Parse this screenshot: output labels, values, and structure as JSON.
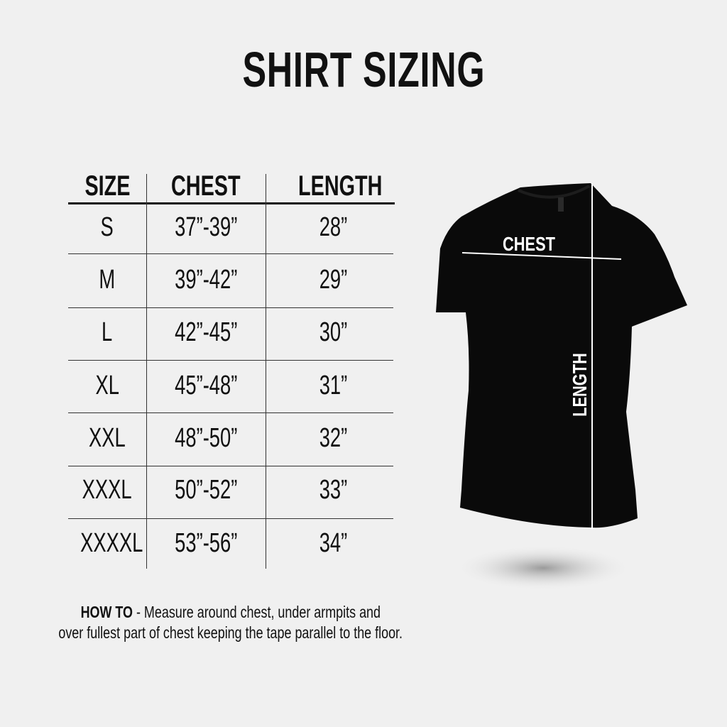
{
  "title": "SHIRT SIZING",
  "table": {
    "headers": [
      "SIZE",
      "CHEST",
      "LENGTH"
    ],
    "rows": [
      [
        "S",
        "37”-39”",
        "28”"
      ],
      [
        "M",
        "39”-42”",
        "29”"
      ],
      [
        "L",
        "42”-45”",
        "30”"
      ],
      [
        "XL",
        "45”-48”",
        "31”"
      ],
      [
        "XXL",
        "48”-50”",
        "32”"
      ],
      [
        "XXXL",
        "50”-52”",
        "33”"
      ],
      [
        "XXXXL",
        "53”-56”",
        "34”"
      ]
    ]
  },
  "note": {
    "label": "HOW TO",
    "line1": " - Measure around chest, under armpits and",
    "line2": "over fullest part of chest keeping the tape parallel to the floor."
  },
  "diagram": {
    "chest_label": "CHEST",
    "length_label": "LENGTH",
    "shirt_color": "#0a0a0a",
    "line_color": "#ffffff"
  }
}
